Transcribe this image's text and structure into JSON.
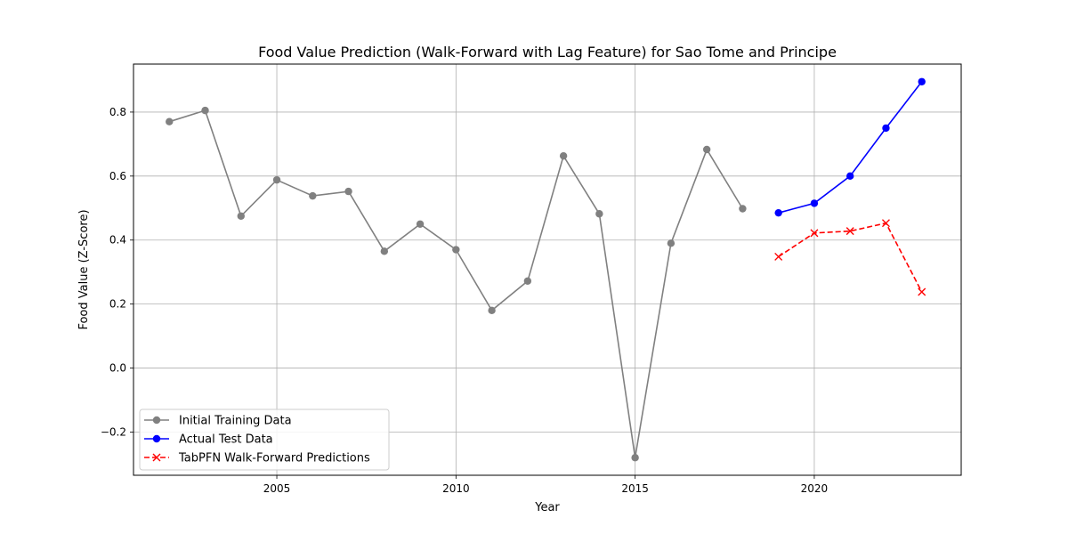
{
  "chart_data": {
    "type": "line",
    "title": "Food Value Prediction (Walk-Forward with Lag Feature) for Sao Tome and Principe",
    "xlabel": "Year",
    "ylabel": "Food Value (Z-Score)",
    "xlim": [
      2001,
      2024.1
    ],
    "ylim": [
      -0.335,
      0.95
    ],
    "xticks": [
      2005,
      2010,
      2015,
      2020
    ],
    "yticks": [
      -0.2,
      0.0,
      0.2,
      0.4,
      0.6,
      0.8
    ],
    "ytick_labels": [
      "−0.2",
      "0.0",
      "0.2",
      "0.4",
      "0.6",
      "0.8"
    ],
    "grid": true,
    "legend_position": "lower-left",
    "series": [
      {
        "name": "Initial Training Data",
        "color": "#808080",
        "marker": "circle",
        "linestyle": "solid",
        "x": [
          2002,
          2003,
          2004,
          2005,
          2006,
          2007,
          2008,
          2009,
          2010,
          2011,
          2012,
          2013,
          2014,
          2015,
          2016,
          2017,
          2018
        ],
        "y": [
          0.77,
          0.805,
          0.475,
          0.588,
          0.538,
          0.552,
          0.365,
          0.45,
          0.37,
          0.18,
          0.272,
          0.663,
          0.482,
          -0.28,
          0.39,
          0.683,
          0.498
        ]
      },
      {
        "name": "Actual Test Data",
        "color": "#0000ff",
        "marker": "circle",
        "linestyle": "solid",
        "x": [
          2019,
          2020,
          2021,
          2022,
          2023
        ],
        "y": [
          0.485,
          0.515,
          0.6,
          0.75,
          0.895
        ]
      },
      {
        "name": "TabPFN Walk-Forward Predictions",
        "color": "#ff0000",
        "marker": "x",
        "linestyle": "dashed",
        "x": [
          2019,
          2020,
          2021,
          2022,
          2023
        ],
        "y": [
          0.348,
          0.422,
          0.428,
          0.453,
          0.238
        ]
      }
    ]
  }
}
